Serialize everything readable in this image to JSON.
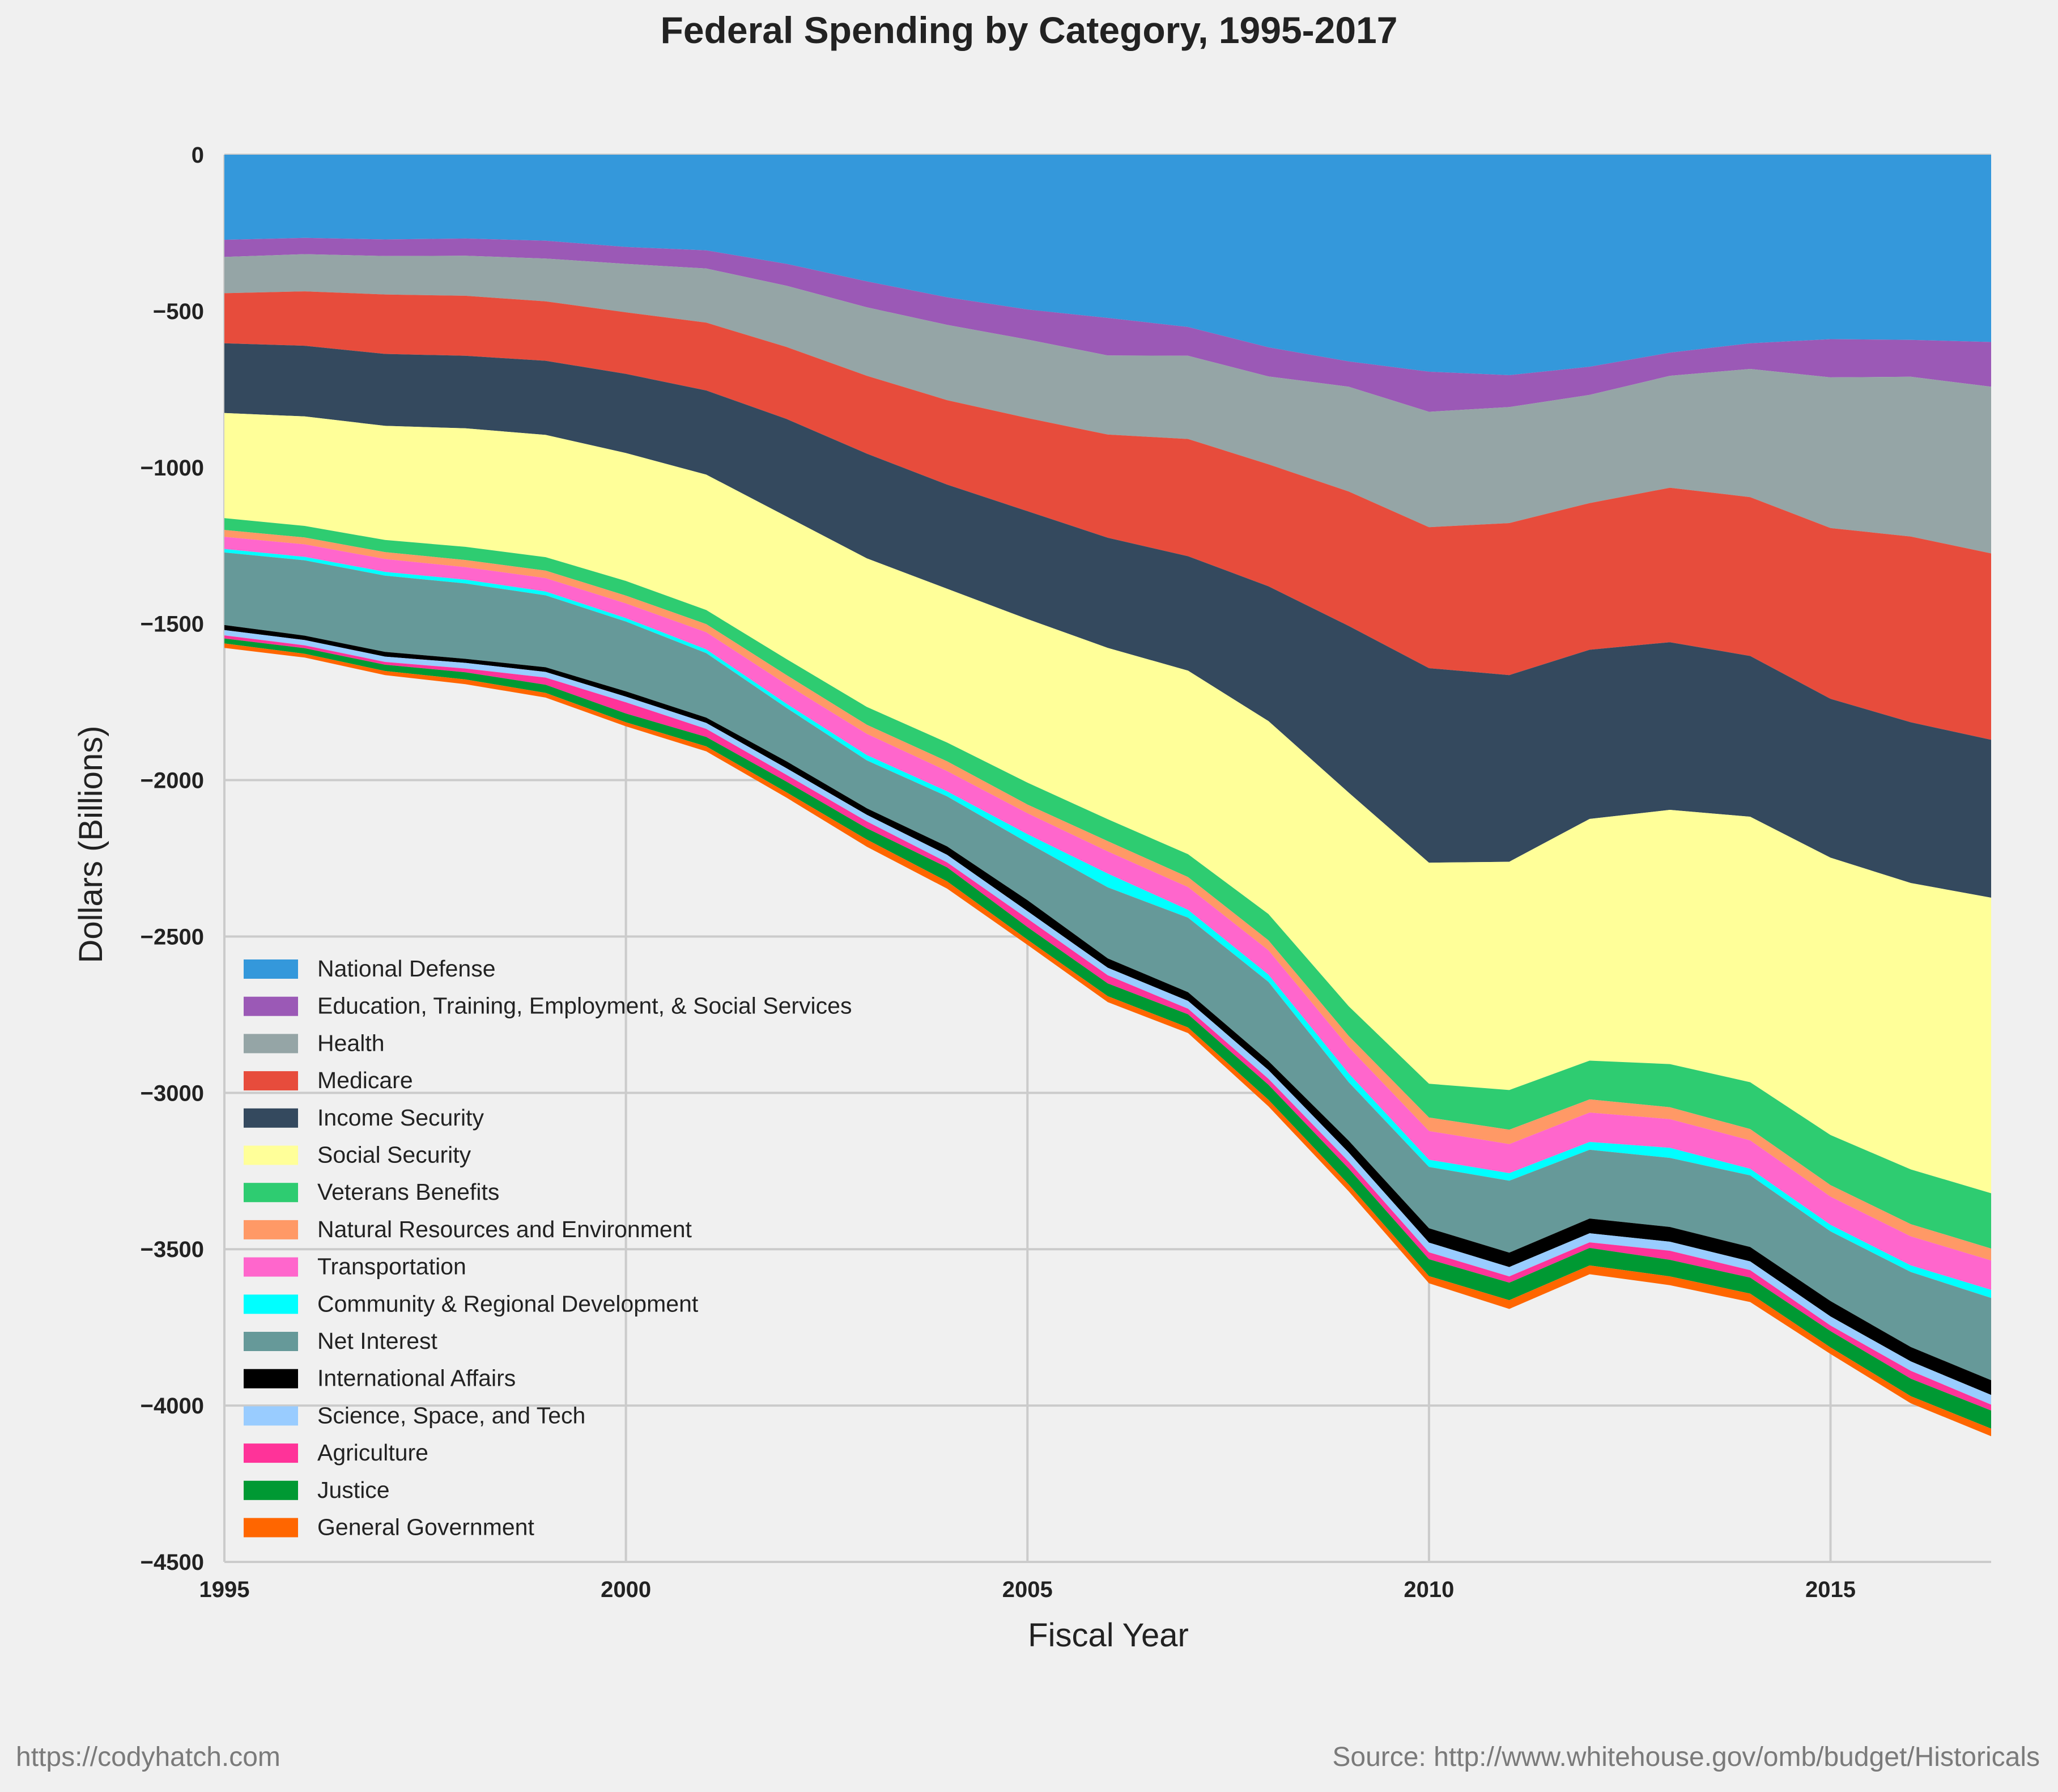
{
  "chart_data": {
    "type": "area",
    "stacked": true,
    "direction": "negative",
    "title": "Federal Spending by Category, 1995-2017",
    "xlabel": "Fiscal Year",
    "ylabel": "Dollars (Billions)",
    "ylim": [
      -4500,
      0
    ],
    "xlim": [
      1995,
      2017
    ],
    "yticks": [
      "0",
      "-500",
      "-1000",
      "-1500",
      "-2000",
      "-2500",
      "-3000",
      "-3500",
      "-4000",
      "-4500"
    ],
    "ytick_values": [
      0,
      -500,
      -1000,
      -1500,
      -2000,
      -2500,
      -3000,
      -3500,
      -4000,
      -4500
    ],
    "xticks": [
      "1995",
      "2000",
      "2005",
      "2010",
      "2015"
    ],
    "xtick_values": [
      1995,
      2000,
      2005,
      2010,
      2015
    ],
    "grid": true,
    "legend_position": "lower-left",
    "x": [
      1995,
      1996,
      1997,
      1998,
      1999,
      2000,
      2001,
      2002,
      2003,
      2004,
      2005,
      2006,
      2007,
      2008,
      2009,
      2010,
      2011,
      2012,
      2013,
      2014,
      2015,
      2016,
      2017
    ],
    "series": [
      {
        "name": "National Defense",
        "color": "#3498db",
        "values": [
          272,
          266,
          271,
          268,
          275,
          295,
          306,
          349,
          405,
          456,
          495,
          522,
          551,
          616,
          661,
          694,
          705,
          678,
          633,
          603,
          590,
          592,
          599
        ]
      },
      {
        "name": "Education, Training, Employment, & Social Services",
        "color": "#9b59b6",
        "values": [
          55,
          52,
          53,
          55,
          57,
          54,
          58,
          70,
          83,
          88,
          96,
          120,
          92,
          93,
          81,
          128,
          102,
          90,
          74,
          82,
          122,
          118,
          143
        ]
      },
      {
        "name": "Health",
        "color": "#95a5a6",
        "values": [
          116,
          119,
          123,
          128,
          137,
          155,
          173,
          196,
          219,
          241,
          251,
          253,
          266,
          281,
          335,
          369,
          371,
          346,
          358,
          410,
          482,
          511,
          533
        ]
      },
      {
        "name": "Medicare",
        "color": "#e74c3c",
        "values": [
          160,
          174,
          190,
          192,
          190,
          197,
          217,
          230,
          249,
          270,
          298,
          330,
          375,
          390,
          430,
          451,
          486,
          469,
          494,
          508,
          546,
          594,
          596
        ]
      },
      {
        "name": "Income Security",
        "color": "#34495e",
        "values": [
          223,
          226,
          230,
          232,
          237,
          253,
          269,
          312,
          335,
          333,
          345,
          352,
          366,
          431,
          533,
          622,
          597,
          541,
          536,
          514,
          508,
          514,
          505
        ]
      },
      {
        "name": "Social Security",
        "color": "#ffff99",
        "values": [
          336,
          350,
          365,
          379,
          391,
          409,
          433,
          456,
          475,
          492,
          523,
          548,
          587,
          617,
          683,
          707,
          730,
          773,
          813,
          849,
          887,
          916,
          945
        ]
      },
      {
        "name": "Veterans Benefits",
        "color": "#2ecc71",
        "values": [
          38,
          37,
          39,
          42,
          43,
          47,
          45,
          51,
          57,
          60,
          70,
          70,
          73,
          84,
          95,
          108,
          127,
          124,
          138,
          150,
          160,
          175,
          177
        ]
      },
      {
        "name": "Natural Resources and Environment",
        "color": "#ff9966",
        "values": [
          22,
          22,
          22,
          23,
          24,
          25,
          26,
          30,
          29,
          31,
          28,
          33,
          32,
          32,
          36,
          43,
          46,
          42,
          38,
          36,
          37,
          39,
          38
        ]
      },
      {
        "name": "Transportation",
        "color": "#ff66cc",
        "values": [
          39,
          40,
          41,
          40,
          43,
          47,
          55,
          62,
          68,
          65,
          67,
          71,
          73,
          78,
          84,
          92,
          93,
          94,
          92,
          91,
          90,
          93,
          94
        ]
      },
      {
        "name": "Community & Regional Development",
        "color": "#00ffff",
        "values": [
          11,
          11,
          12,
          12,
          12,
          11,
          12,
          13,
          17,
          16,
          27,
          44,
          25,
          23,
          28,
          23,
          24,
          25,
          32,
          21,
          21,
          21,
          26
        ]
      },
      {
        "name": "Net Interest",
        "color": "#669999",
        "values": [
          232,
          241,
          244,
          241,
          230,
          223,
          206,
          171,
          153,
          160,
          184,
          227,
          238,
          253,
          187,
          196,
          230,
          220,
          221,
          229,
          223,
          240,
          263
        ]
      },
      {
        "name": "International Affairs",
        "color": "#000000",
        "values": [
          16,
          14,
          15,
          13,
          15,
          17,
          17,
          22,
          21,
          27,
          35,
          30,
          28,
          29,
          38,
          46,
          46,
          47,
          47,
          46,
          49,
          46,
          47
        ]
      },
      {
        "name": "Science, Space, and Tech",
        "color": "#99ccff",
        "values": [
          17,
          17,
          17,
          18,
          18,
          18,
          19,
          21,
          21,
          24,
          24,
          24,
          25,
          28,
          29,
          31,
          30,
          29,
          29,
          28,
          29,
          30,
          31
        ]
      },
      {
        "name": "Agriculture",
        "color": "#ff3399",
        "values": [
          10,
          9,
          9,
          12,
          23,
          36,
          26,
          22,
          22,
          16,
          27,
          26,
          18,
          19,
          22,
          22,
          20,
          18,
          29,
          24,
          18,
          25,
          19
        ]
      },
      {
        "name": "Justice",
        "color": "#009933",
        "values": [
          16,
          18,
          20,
          23,
          26,
          28,
          30,
          34,
          36,
          45,
          40,
          41,
          42,
          48,
          51,
          54,
          56,
          56,
          53,
          51,
          52,
          56,
          58
        ]
      },
      {
        "name": "General Government",
        "color": "#ff6600",
        "values": [
          14,
          12,
          13,
          15,
          15,
          13,
          16,
          17,
          23,
          23,
          17,
          19,
          18,
          21,
          22,
          23,
          28,
          28,
          28,
          27,
          21,
          23,
          24
        ]
      }
    ]
  },
  "footer": {
    "left": "https://codyhatch.com",
    "right": "Source: http://www.whitehouse.gov/omb/budget/Historicals"
  }
}
